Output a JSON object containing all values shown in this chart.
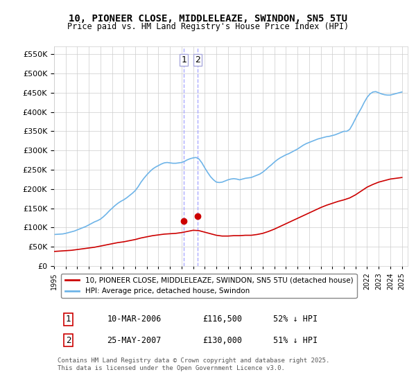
{
  "title": "10, PIONEER CLOSE, MIDDLELEAZE, SWINDON, SN5 5TU",
  "subtitle": "Price paid vs. HM Land Registry's House Price Index (HPI)",
  "ylabel_ticks": [
    "£0",
    "£50K",
    "£100K",
    "£150K",
    "£200K",
    "£250K",
    "£300K",
    "£350K",
    "£400K",
    "£450K",
    "£500K",
    "£550K"
  ],
  "ytick_values": [
    0,
    50000,
    100000,
    150000,
    200000,
    250000,
    300000,
    350000,
    400000,
    450000,
    500000,
    550000
  ],
  "ylim": [
    0,
    570000
  ],
  "xlim_start": 1995.0,
  "xlim_end": 2025.5,
  "hpi_color": "#6eb4e8",
  "price_color": "#cc0000",
  "marker_color": "#cc0000",
  "vline_color": "#aaaaff",
  "transaction1": {
    "label": "1",
    "year": 2006.19,
    "price": 116500,
    "date": "10-MAR-2006",
    "pct": "52% ↓ HPI"
  },
  "transaction2": {
    "label": "2",
    "year": 2007.39,
    "price": 130000,
    "date": "25-MAY-2007",
    "pct": "51% ↓ HPI"
  },
  "legend_label_red": "10, PIONEER CLOSE, MIDDLELEAZE, SWINDON, SN5 5TU (detached house)",
  "legend_label_blue": "HPI: Average price, detached house, Swindon",
  "footer": "Contains HM Land Registry data © Crown copyright and database right 2025.\nThis data is licensed under the Open Government Licence v3.0.",
  "background_color": "#ffffff",
  "plot_bg_color": "#ffffff",
  "grid_color": "#cccccc",
  "hpi_x": [
    1995.0,
    1995.25,
    1995.5,
    1995.75,
    1996.0,
    1996.25,
    1996.5,
    1996.75,
    1997.0,
    1997.25,
    1997.5,
    1997.75,
    1998.0,
    1998.25,
    1998.5,
    1998.75,
    1999.0,
    1999.25,
    1999.5,
    1999.75,
    2000.0,
    2000.25,
    2000.5,
    2000.75,
    2001.0,
    2001.25,
    2001.5,
    2001.75,
    2002.0,
    2002.25,
    2002.5,
    2002.75,
    2003.0,
    2003.25,
    2003.5,
    2003.75,
    2004.0,
    2004.25,
    2004.5,
    2004.75,
    2005.0,
    2005.25,
    2005.5,
    2005.75,
    2006.0,
    2006.25,
    2006.5,
    2006.75,
    2007.0,
    2007.25,
    2007.5,
    2007.75,
    2008.0,
    2008.25,
    2008.5,
    2008.75,
    2009.0,
    2009.25,
    2009.5,
    2009.75,
    2010.0,
    2010.25,
    2010.5,
    2010.75,
    2011.0,
    2011.25,
    2011.5,
    2011.75,
    2012.0,
    2012.25,
    2012.5,
    2012.75,
    2013.0,
    2013.25,
    2013.5,
    2013.75,
    2014.0,
    2014.25,
    2014.5,
    2014.75,
    2015.0,
    2015.25,
    2015.5,
    2015.75,
    2016.0,
    2016.25,
    2016.5,
    2016.75,
    2017.0,
    2017.25,
    2017.5,
    2017.75,
    2018.0,
    2018.25,
    2018.5,
    2018.75,
    2019.0,
    2019.25,
    2019.5,
    2019.75,
    2020.0,
    2020.25,
    2020.5,
    2020.75,
    2021.0,
    2021.25,
    2021.5,
    2021.75,
    2022.0,
    2022.25,
    2022.5,
    2022.75,
    2023.0,
    2023.25,
    2023.5,
    2023.75,
    2024.0,
    2024.25,
    2024.5,
    2024.75,
    2025.0
  ],
  "hpi_y": [
    82000,
    82500,
    83000,
    83500,
    85000,
    87000,
    89000,
    91000,
    94000,
    97000,
    100000,
    103000,
    107000,
    111000,
    115000,
    118000,
    122000,
    128000,
    135000,
    143000,
    150000,
    157000,
    163000,
    168000,
    172000,
    177000,
    183000,
    189000,
    196000,
    206000,
    218000,
    228000,
    237000,
    245000,
    252000,
    257000,
    261000,
    265000,
    268000,
    269000,
    268000,
    267000,
    267000,
    268000,
    269000,
    272000,
    276000,
    279000,
    281000,
    282000,
    278000,
    268000,
    255000,
    243000,
    232000,
    224000,
    218000,
    217000,
    218000,
    221000,
    224000,
    226000,
    227000,
    226000,
    224000,
    226000,
    228000,
    229000,
    230000,
    233000,
    236000,
    239000,
    244000,
    250000,
    257000,
    263000,
    270000,
    276000,
    281000,
    285000,
    289000,
    292000,
    296000,
    300000,
    304000,
    309000,
    314000,
    318000,
    321000,
    324000,
    327000,
    330000,
    332000,
    334000,
    336000,
    337000,
    339000,
    341000,
    344000,
    347000,
    350000,
    350000,
    355000,
    368000,
    383000,
    397000,
    410000,
    425000,
    438000,
    447000,
    452000,
    453000,
    450000,
    447000,
    445000,
    444000,
    444000,
    446000,
    448000,
    450000,
    452000
  ],
  "red_x": [
    1995.0,
    1995.5,
    1996.0,
    1996.5,
    1997.0,
    1997.5,
    1998.0,
    1998.5,
    1999.0,
    1999.5,
    2000.0,
    2000.5,
    2001.0,
    2001.5,
    2002.0,
    2002.5,
    2003.0,
    2003.5,
    2004.0,
    2004.5,
    2005.0,
    2005.5,
    2006.0,
    2006.5,
    2007.0,
    2007.5,
    2008.0,
    2008.5,
    2009.0,
    2009.5,
    2010.0,
    2010.5,
    2011.0,
    2011.5,
    2012.0,
    2012.5,
    2013.0,
    2013.5,
    2014.0,
    2014.5,
    2015.0,
    2015.5,
    2016.0,
    2016.5,
    2017.0,
    2017.5,
    2018.0,
    2018.5,
    2019.0,
    2019.5,
    2020.0,
    2020.5,
    2021.0,
    2021.5,
    2022.0,
    2022.5,
    2023.0,
    2023.5,
    2024.0,
    2024.5,
    2025.0
  ],
  "red_y": [
    38000,
    39000,
    40000,
    41000,
    43000,
    45000,
    47000,
    49000,
    52000,
    55000,
    58000,
    61000,
    63000,
    66000,
    69000,
    73000,
    76000,
    79000,
    81000,
    83000,
    84000,
    85000,
    87000,
    90000,
    93000,
    92000,
    88000,
    84000,
    80000,
    78000,
    78000,
    79000,
    79000,
    80000,
    80000,
    82000,
    85000,
    90000,
    96000,
    103000,
    110000,
    117000,
    124000,
    131000,
    138000,
    145000,
    152000,
    158000,
    163000,
    168000,
    172000,
    177000,
    185000,
    195000,
    205000,
    212000,
    218000,
    222000,
    226000,
    228000,
    230000
  ]
}
